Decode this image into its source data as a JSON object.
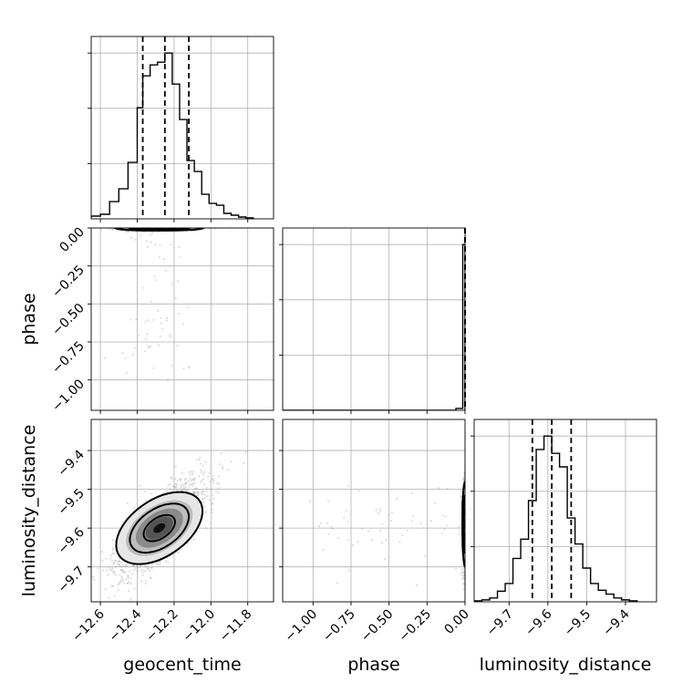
{
  "chart_data": {
    "type": "corner",
    "parameters": [
      "geocent_time",
      "phase",
      "luminosity_distance"
    ],
    "ranges": {
      "geocent_time": [
        -12.65,
        -11.66
      ],
      "phase": [
        -1.2,
        0.0
      ],
      "luminosity_distance": [
        -9.79,
        -9.32
      ]
    },
    "ticks": {
      "geocent_time": [
        -12.6,
        -12.4,
        -12.2,
        -12.0,
        -11.8
      ],
      "phase": [
        -1.0,
        -0.75,
        -0.5,
        -0.25,
        0.0
      ],
      "luminosity_distance": [
        -9.7,
        -9.6,
        -9.5,
        -9.4
      ]
    },
    "tick_labels": {
      "geocent_time": [
        "−12.6",
        "−12.4",
        "−12.2",
        "−12.0",
        "−11.8"
      ],
      "phase": [
        "−1.00",
        "−0.75",
        "−0.50",
        "−0.25",
        "0.00"
      ],
      "luminosity_distance": [
        "−9.7",
        "−9.6",
        "−9.5",
        "−9.4"
      ]
    },
    "quantiles": {
      "geocent_time": [
        -12.37,
        -12.25,
        -12.12
      ],
      "phase": [
        0.0,
        0.0,
        0.0
      ],
      "luminosity_distance": [
        -9.64,
        -9.59,
        -9.54
      ]
    },
    "histograms": {
      "geocent_time": {
        "edges": [
          -12.65,
          -12.6,
          -12.55,
          -12.5,
          -12.45,
          -12.4,
          -12.37,
          -12.33,
          -12.29,
          -12.25,
          -12.21,
          -12.17,
          -12.13,
          -12.09,
          -12.05,
          -12.01,
          -11.97,
          -11.93,
          -11.89,
          -11.85,
          -11.81,
          -11.77
        ],
        "counts": [
          3,
          5,
          19,
          33,
          62,
          122,
          157,
          169,
          172,
          182,
          148,
          109,
          64,
          52,
          27,
          17,
          15,
          6,
          4,
          2,
          1
        ]
      },
      "phase": {
        "edges": [
          -1.2,
          -1.14,
          -1.08,
          -1.02,
          -0.96,
          -0.9,
          -0.84,
          -0.78,
          -0.72,
          -0.66,
          -0.6,
          -0.54,
          -0.48,
          -0.42,
          -0.36,
          -0.3,
          -0.24,
          -0.18,
          -0.12,
          -0.06,
          -0.015,
          0.0
        ],
        "counts": [
          0,
          0,
          0,
          0,
          0,
          0,
          0,
          0,
          0,
          0,
          0,
          0,
          0,
          0,
          0,
          0,
          0,
          0,
          0,
          2,
          180
        ]
      },
      "luminosity_distance": {
        "edges": [
          -9.79,
          -9.77,
          -9.75,
          -9.73,
          -9.71,
          -9.69,
          -9.67,
          -9.65,
          -9.63,
          -9.61,
          -9.59,
          -9.57,
          -9.55,
          -9.53,
          -9.51,
          -9.49,
          -9.47,
          -9.45,
          -9.43,
          -9.41,
          -9.39,
          -9.37
        ],
        "counts": [
          1,
          2,
          4,
          11,
          19,
          45,
          65,
          105,
          158,
          172,
          154,
          140,
          87,
          60,
          35,
          19,
          12,
          8,
          4,
          2,
          1
        ]
      }
    },
    "series": [
      {
        "pair": [
          "geocent_time",
          "phase"
        ],
        "center": [
          -12.28,
          0.0
        ],
        "sigma": [
          0.11,
          0.008
        ],
        "density": "concentrated at phase 0 with sparse scatter down to phase -1.0"
      },
      {
        "pair": [
          "geocent_time",
          "luminosity_distance"
        ],
        "center": [
          -12.28,
          -9.6
        ],
        "sigma": [
          0.12,
          0.06
        ],
        "correlation": 0.75
      },
      {
        "pair": [
          "phase",
          "luminosity_distance"
        ],
        "center": [
          0.0,
          -9.59
        ],
        "sigma": [
          0.008,
          0.05
        ],
        "density": "concentrated at phase 0 with sparse scatter down to phase -1.1"
      }
    ],
    "grid": true
  }
}
